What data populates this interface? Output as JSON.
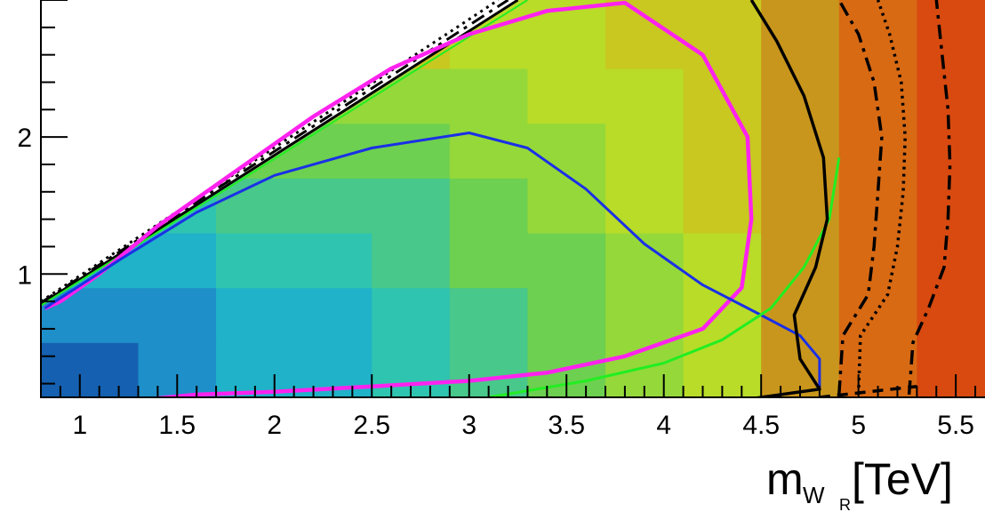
{
  "chart_data": {
    "type": "heatmap",
    "title": "",
    "xlabel": {
      "main": "m",
      "sub": "W",
      "subsub": "R",
      "unit": "[TeV]"
    },
    "ylabel": "",
    "xlim": [
      0.8,
      5.65
    ],
    "ylim": [
      0.1,
      3.0
    ],
    "x_ticks": [
      {
        "value": 1,
        "label": "1"
      },
      {
        "value": 1.5,
        "label": "1.5"
      },
      {
        "value": 2,
        "label": "2"
      },
      {
        "value": 2.5,
        "label": "2.5"
      },
      {
        "value": 3,
        "label": "3"
      },
      {
        "value": 3.5,
        "label": "3.5"
      },
      {
        "value": 4,
        "label": "4"
      },
      {
        "value": 4.5,
        "label": "4.5"
      },
      {
        "value": 5,
        "label": "5"
      },
      {
        "value": 5.5,
        "label": "5.5"
      }
    ],
    "y_ticks": [
      {
        "value": 1,
        "label": "1"
      },
      {
        "value": 2,
        "label": "2"
      }
    ],
    "grid": false,
    "heatmap": {
      "x_bin_edges": [
        0.8,
        1.3,
        1.7,
        2.1,
        2.5,
        2.9,
        3.3,
        3.7,
        4.1,
        4.5,
        4.9,
        5.3,
        5.65
      ],
      "y_bin_edges": [
        0.1,
        0.5,
        0.9,
        1.3,
        1.7,
        2.1,
        2.5,
        3.0
      ],
      "palette": [
        "#1560b0",
        "#1e8fc8",
        "#20b2c8",
        "#2fc4b0",
        "#48c88a",
        "#6dd050",
        "#95d83a",
        "#b8dc28",
        "#c8c820",
        "#c8961c",
        "#d86a14",
        "#d84a10",
        "#c42a0c"
      ],
      "level_rows": [
        [
          0,
          1,
          2,
          2,
          3,
          4,
          5,
          6,
          7,
          9,
          10,
          11
        ],
        [
          1,
          1,
          2,
          2,
          3,
          4,
          5,
          6,
          7,
          9,
          10,
          11
        ],
        [
          2,
          2,
          3,
          3,
          4,
          5,
          5,
          6,
          7,
          9,
          10,
          11
        ],
        [
          null,
          3,
          4,
          4,
          4,
          5,
          6,
          7,
          8,
          9,
          10,
          11
        ],
        [
          null,
          null,
          5,
          5,
          5,
          6,
          6,
          7,
          8,
          9,
          10,
          11
        ],
        [
          null,
          null,
          null,
          6,
          6,
          6,
          7,
          7,
          8,
          9,
          10,
          11
        ],
        [
          null,
          null,
          null,
          null,
          8,
          7,
          7,
          8,
          8,
          9,
          10,
          11
        ]
      ]
    },
    "diagonal_boundary": {
      "comment_free": true,
      "points": [
        [
          0.8,
          0.78
        ],
        [
          3.25,
          3.0
        ]
      ]
    },
    "contours": [
      {
        "style": "magenta",
        "color": "#ff22ee",
        "dash": "",
        "width": 4.5,
        "points": [
          [
            1.3,
            0.08
          ],
          [
            1.6,
            0.12
          ],
          [
            2.0,
            0.14
          ],
          [
            2.5,
            0.18
          ],
          [
            3.0,
            0.22
          ],
          [
            3.4,
            0.28
          ],
          [
            3.8,
            0.4
          ],
          [
            4.2,
            0.6
          ],
          [
            4.4,
            0.9
          ],
          [
            4.45,
            1.4
          ],
          [
            4.43,
            2.0
          ],
          [
            4.2,
            2.6
          ],
          [
            3.8,
            2.98
          ],
          [
            3.4,
            2.92
          ],
          [
            3.0,
            2.75
          ],
          [
            2.6,
            2.5
          ],
          [
            2.2,
            2.15
          ],
          [
            1.8,
            1.75
          ],
          [
            1.4,
            1.35
          ],
          [
            1.1,
            1.0
          ],
          [
            0.9,
            0.8
          ],
          [
            0.82,
            0.75
          ]
        ]
      },
      {
        "style": "blue",
        "color": "#1a30e6",
        "dash": "",
        "width": 3,
        "points": [
          [
            0.82,
            0.75
          ],
          [
            1.2,
            1.1
          ],
          [
            1.6,
            1.45
          ],
          [
            2.0,
            1.72
          ],
          [
            2.5,
            1.92
          ],
          [
            3.0,
            2.03
          ],
          [
            3.3,
            1.92
          ],
          [
            3.6,
            1.62
          ],
          [
            3.9,
            1.22
          ],
          [
            4.2,
            0.92
          ],
          [
            4.5,
            0.7
          ],
          [
            4.7,
            0.55
          ],
          [
            4.8,
            0.38
          ],
          [
            4.8,
            0.15
          ]
        ]
      },
      {
        "style": "green",
        "color": "#22ee22",
        "dash": "",
        "width": 3,
        "points": [
          [
            3.1,
            0.1
          ],
          [
            3.6,
            0.22
          ],
          [
            4.0,
            0.35
          ],
          [
            4.3,
            0.52
          ],
          [
            4.55,
            0.75
          ],
          [
            4.72,
            1.05
          ],
          [
            4.85,
            1.4
          ],
          [
            4.9,
            1.85
          ]
        ]
      },
      {
        "style": "black-solid",
        "color": "#000000",
        "dash": "",
        "width": 3.5,
        "points": [
          [
            4.4,
            0.08
          ],
          [
            4.8,
            0.16
          ],
          [
            4.7,
            0.38
          ],
          [
            4.67,
            0.7
          ],
          [
            4.78,
            1.05
          ],
          [
            4.84,
            1.4
          ],
          [
            4.82,
            1.85
          ],
          [
            4.72,
            2.3
          ],
          [
            4.58,
            2.7
          ],
          [
            4.45,
            3.0
          ]
        ]
      },
      {
        "style": "black-dashdot-inner",
        "color": "#000000",
        "dash": "16,7,4,7",
        "width": 3.5,
        "points": [
          [
            4.9,
            0.12
          ],
          [
            4.92,
            0.55
          ],
          [
            5.05,
            0.85
          ],
          [
            5.08,
            1.2
          ],
          [
            5.1,
            1.6
          ],
          [
            5.12,
            2.0
          ],
          [
            5.08,
            2.4
          ],
          [
            5.0,
            2.75
          ],
          [
            4.9,
            3.0
          ]
        ]
      },
      {
        "style": "black-dotted",
        "color": "#000000",
        "dash": "3,5",
        "width": 3.5,
        "points": [
          [
            5.0,
            0.12
          ],
          [
            5.01,
            0.55
          ],
          [
            5.15,
            0.85
          ],
          [
            5.2,
            1.2
          ],
          [
            5.23,
            1.6
          ],
          [
            5.24,
            2.0
          ],
          [
            5.22,
            2.4
          ],
          [
            5.16,
            2.75
          ],
          [
            5.1,
            3.0
          ]
        ]
      },
      {
        "style": "black-dashdot-outer",
        "color": "#000000",
        "dash": "16,7,4,7",
        "width": 3.5,
        "points": [
          [
            5.26,
            0.12
          ],
          [
            5.28,
            0.5
          ],
          [
            5.36,
            0.75
          ],
          [
            5.44,
            1.05
          ],
          [
            5.46,
            1.4
          ],
          [
            5.47,
            1.8
          ],
          [
            5.46,
            2.2
          ],
          [
            5.43,
            2.6
          ],
          [
            5.4,
            3.0
          ]
        ]
      },
      {
        "style": "black-dashed-bottom",
        "color": "#000000",
        "dash": "12,8",
        "width": 3.5,
        "points": [
          [
            4.8,
            0.1
          ],
          [
            5.05,
            0.14
          ],
          [
            5.3,
            0.18
          ]
        ]
      }
    ],
    "upper_contour_bundle": [
      {
        "color": "#000000",
        "dash": "16,7,4,7",
        "width": 3,
        "points": [
          [
            0.8,
            0.79
          ],
          [
            3.2,
            3.0
          ]
        ]
      },
      {
        "color": "#000000",
        "dash": "3,5",
        "width": 3,
        "points": [
          [
            0.8,
            0.8
          ],
          [
            3.15,
            3.0
          ]
        ]
      },
      {
        "color": "#000000",
        "dash": "",
        "width": 3,
        "points": [
          [
            0.8,
            0.78
          ],
          [
            3.25,
            3.0
          ]
        ]
      },
      {
        "color": "#22ee22",
        "dash": "",
        "width": 2,
        "points": [
          [
            0.8,
            0.77
          ],
          [
            3.3,
            3.0
          ]
        ]
      }
    ]
  }
}
